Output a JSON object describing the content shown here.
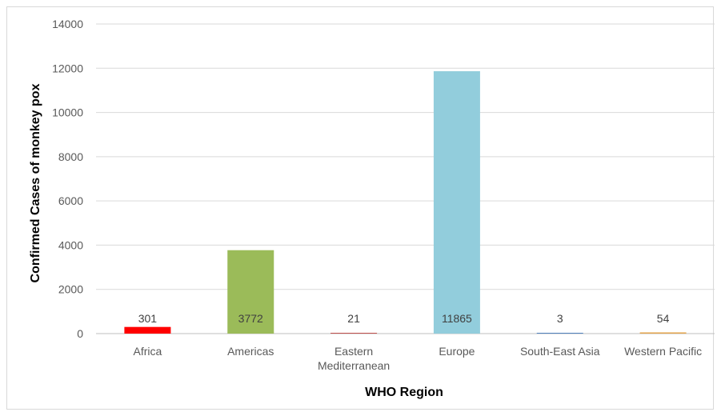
{
  "chart_data": {
    "type": "bar",
    "categories": [
      "Africa",
      "Americas",
      "Eastern Mediterranean",
      "Europe",
      "South-East Asia",
      "Western Pacific"
    ],
    "category_lines": [
      [
        "Africa"
      ],
      [
        "Americas"
      ],
      [
        "Eastern",
        "Mediterranean"
      ],
      [
        "Europe"
      ],
      [
        "South-East Asia"
      ],
      [
        "Western Pacific"
      ]
    ],
    "values": [
      301,
      3772,
      21,
      11865,
      3,
      54
    ],
    "data_labels": [
      "301",
      "3772",
      "21",
      "11865",
      "3",
      "54"
    ],
    "colors": [
      "#ff0000",
      "#9bbb59",
      "#c0504d",
      "#92cddc",
      "#4f81bd",
      "#e3a44c"
    ],
    "xlabel": "WHO Region",
    "ylabel": "Confirmed Cases of monkey pox",
    "ylim": [
      0,
      14000
    ],
    "yticks": [
      0,
      2000,
      4000,
      6000,
      8000,
      10000,
      12000,
      14000
    ],
    "grid": true,
    "legend": "none"
  }
}
